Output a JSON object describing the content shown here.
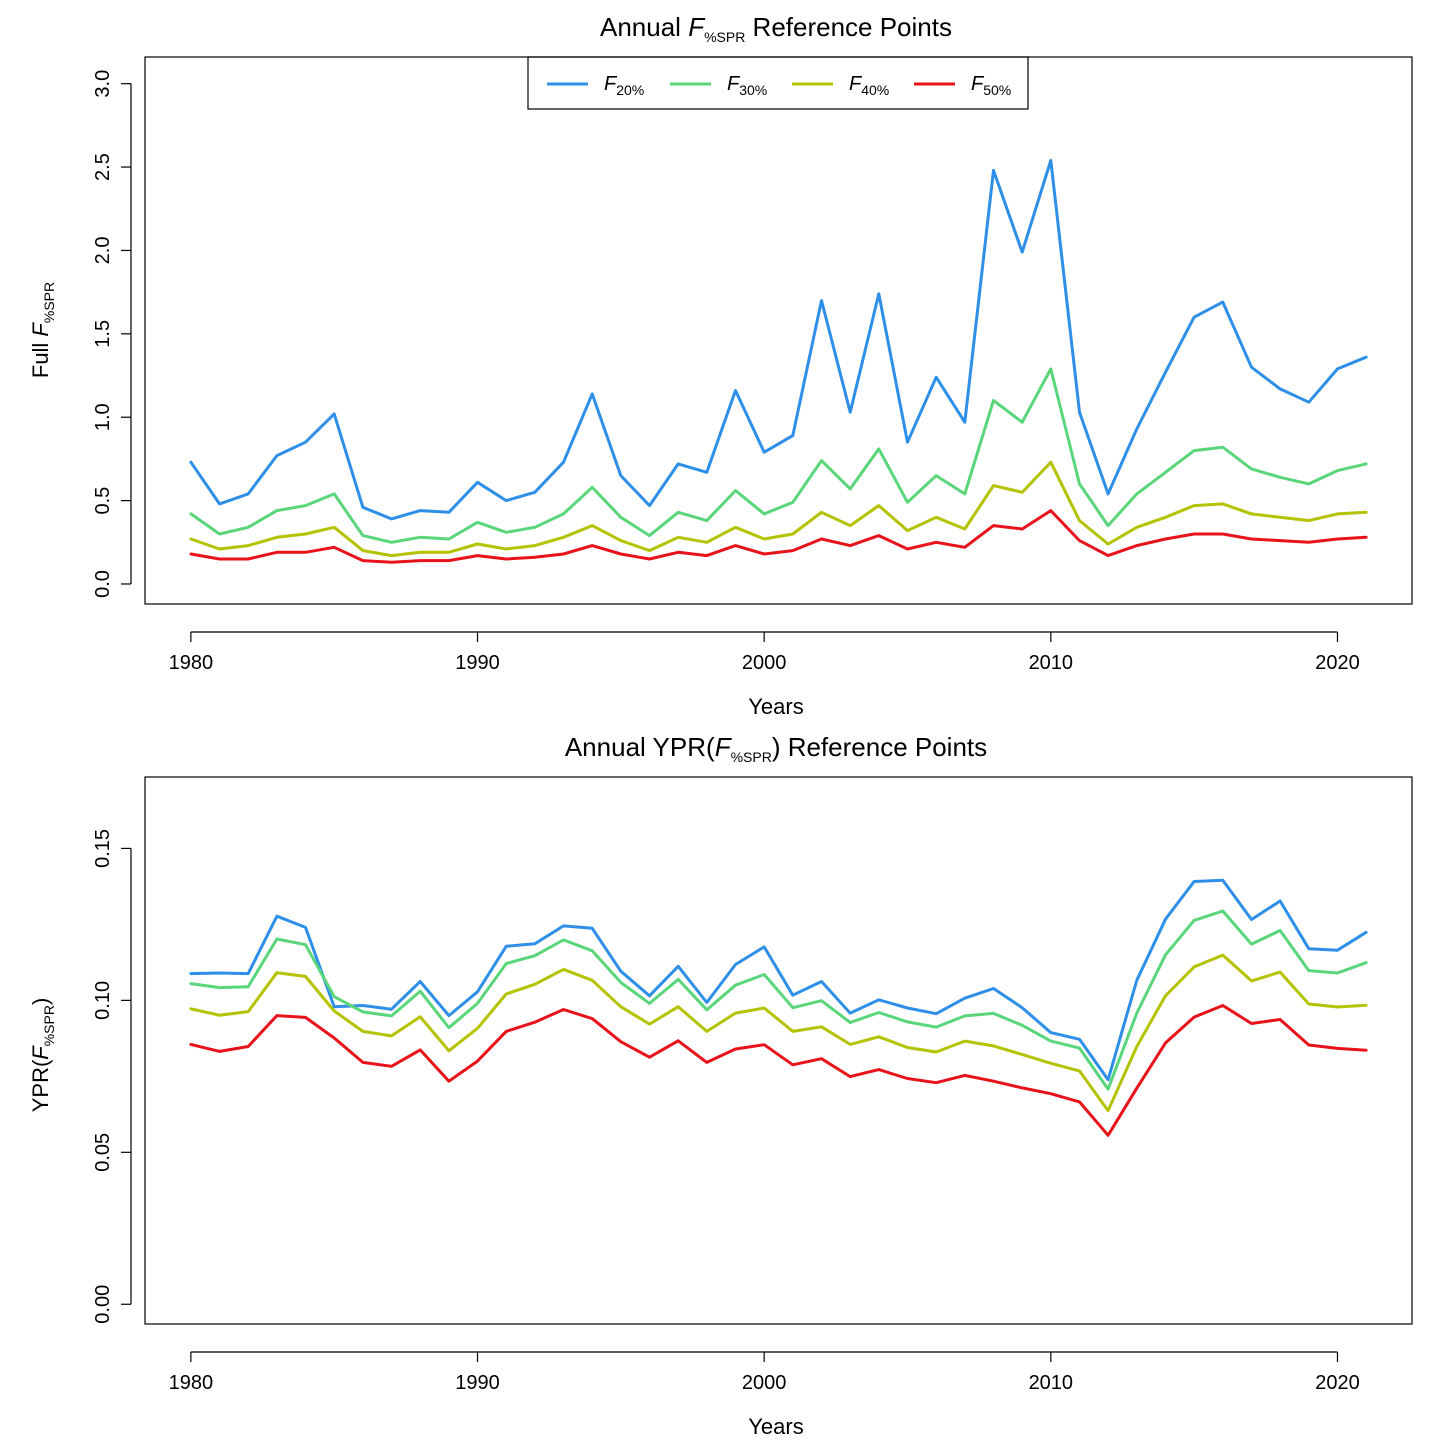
{
  "colors": {
    "F20": "#2E8FE8",
    "F30": "#5AD67A",
    "F40": "#B5C200",
    "F50": "#E8131A"
  },
  "chart_data": [
    {
      "type": "line",
      "title_pre": "Annual ",
      "title_sym": "F",
      "title_sub": "%SPR",
      "title_post": " Reference Points",
      "xlabel": "Years",
      "ylabel_pre": "Full ",
      "ylabel_sym": "F",
      "ylabel_sub": "%SPR",
      "ylabel_post": "",
      "xlim": [
        1978.4,
        2022.6
      ],
      "ylim": [
        -0.12,
        3.16
      ],
      "xticks": [
        1980,
        1990,
        2000,
        2010,
        2020
      ],
      "yticks": [
        "0.0",
        "0.5",
        "1.0",
        "1.5",
        "2.0",
        "2.5",
        "3.0"
      ],
      "legend_position": "top-center",
      "x": [
        1980,
        1981,
        1982,
        1983,
        1984,
        1985,
        1986,
        1987,
        1988,
        1989,
        1990,
        1991,
        1992,
        1993,
        1994,
        1995,
        1996,
        1997,
        1998,
        1999,
        2000,
        2001,
        2002,
        2003,
        2004,
        2005,
        2006,
        2007,
        2008,
        2009,
        2010,
        2011,
        2012,
        2013,
        2014,
        2015,
        2016,
        2017,
        2018,
        2019,
        2020,
        2021
      ],
      "series": [
        {
          "name": "F",
          "sub": "20%",
          "color_key": "F20",
          "values": [
            0.73,
            0.48,
            0.54,
            0.77,
            0.85,
            1.02,
            0.46,
            0.39,
            0.44,
            0.43,
            0.61,
            0.5,
            0.55,
            0.73,
            1.14,
            0.65,
            0.47,
            0.72,
            0.67,
            1.16,
            0.79,
            0.89,
            1.7,
            1.03,
            1.74,
            0.85,
            1.24,
            0.97,
            2.48,
            1.99,
            2.54,
            1.03,
            0.54,
            0.93,
            1.27,
            1.6,
            1.69,
            1.3,
            1.17,
            1.09,
            1.29,
            1.36
          ]
        },
        {
          "name": "F",
          "sub": "30%",
          "color_key": "F30",
          "values": [
            0.42,
            0.3,
            0.34,
            0.44,
            0.47,
            0.54,
            0.29,
            0.25,
            0.28,
            0.27,
            0.37,
            0.31,
            0.34,
            0.42,
            0.58,
            0.4,
            0.29,
            0.43,
            0.38,
            0.56,
            0.42,
            0.49,
            0.74,
            0.57,
            0.81,
            0.49,
            0.65,
            0.54,
            1.1,
            0.97,
            1.29,
            0.6,
            0.35,
            0.54,
            0.67,
            0.8,
            0.82,
            0.69,
            0.64,
            0.6,
            0.68,
            0.72
          ]
        },
        {
          "name": "F",
          "sub": "40%",
          "color_key": "F40",
          "values": [
            0.27,
            0.21,
            0.23,
            0.28,
            0.3,
            0.34,
            0.2,
            0.17,
            0.19,
            0.19,
            0.24,
            0.21,
            0.23,
            0.28,
            0.35,
            0.26,
            0.2,
            0.28,
            0.25,
            0.34,
            0.27,
            0.3,
            0.43,
            0.35,
            0.47,
            0.32,
            0.4,
            0.33,
            0.59,
            0.55,
            0.73,
            0.38,
            0.24,
            0.34,
            0.4,
            0.47,
            0.48,
            0.42,
            0.4,
            0.38,
            0.42,
            0.43
          ]
        },
        {
          "name": "F",
          "sub": "50%",
          "color_key": "F50",
          "values": [
            0.18,
            0.15,
            0.15,
            0.19,
            0.19,
            0.22,
            0.14,
            0.13,
            0.14,
            0.14,
            0.17,
            0.15,
            0.16,
            0.18,
            0.23,
            0.18,
            0.15,
            0.19,
            0.17,
            0.23,
            0.18,
            0.2,
            0.27,
            0.23,
            0.29,
            0.21,
            0.25,
            0.22,
            0.35,
            0.33,
            0.44,
            0.26,
            0.17,
            0.23,
            0.27,
            0.3,
            0.3,
            0.27,
            0.26,
            0.25,
            0.27,
            0.28
          ]
        }
      ]
    },
    {
      "type": "line",
      "title_pre": "Annual YPR(",
      "title_sym": "F",
      "title_sub": "%SPR",
      "title_post": ") Reference Points",
      "xlabel": "Years",
      "ylabel_pre": "YPR(",
      "ylabel_sym": "F",
      "ylabel_sub": "%SPR",
      "ylabel_post": ")",
      "xlim": [
        1978.4,
        2022.6
      ],
      "ylim": [
        -0.0065,
        0.1735
      ],
      "xticks": [
        1980,
        1990,
        2000,
        2010,
        2020
      ],
      "yticks": [
        "0.00",
        "0.05",
        "0.10",
        "0.15"
      ],
      "x": [
        1980,
        1981,
        1982,
        1983,
        1984,
        1985,
        1986,
        1987,
        1988,
        1989,
        1990,
        1991,
        1992,
        1993,
        1994,
        1995,
        1996,
        1997,
        1998,
        1999,
        2000,
        2001,
        2002,
        2003,
        2004,
        2005,
        2006,
        2007,
        2008,
        2009,
        2010,
        2011,
        2012,
        2013,
        2014,
        2015,
        2016,
        2017,
        2018,
        2019,
        2020,
        2021
      ],
      "series": [
        {
          "color_key": "F20",
          "values": [
            0.1088,
            0.109,
            0.1088,
            0.1277,
            0.124,
            0.0979,
            0.0983,
            0.0971,
            0.1062,
            0.095,
            0.1028,
            0.1178,
            0.1186,
            0.1245,
            0.1237,
            0.1096,
            0.1015,
            0.1112,
            0.0993,
            0.1118,
            0.1176,
            0.1017,
            0.1062,
            0.0958,
            0.1002,
            0.0975,
            0.0956,
            0.1007,
            0.1039,
            0.0976,
            0.0894,
            0.0872,
            0.0739,
            0.1066,
            0.1267,
            0.1391,
            0.1395,
            0.1266,
            0.1327,
            0.117,
            0.1165,
            0.1224
          ]
        },
        {
          "color_key": "F30",
          "values": [
            0.1055,
            0.1042,
            0.1045,
            0.1202,
            0.1183,
            0.1012,
            0.0962,
            0.0949,
            0.103,
            0.091,
            0.099,
            0.1121,
            0.1147,
            0.1199,
            0.1163,
            0.1059,
            0.099,
            0.1069,
            0.0969,
            0.105,
            0.1085,
            0.0976,
            0.0999,
            0.0927,
            0.096,
            0.0929,
            0.0912,
            0.0949,
            0.0957,
            0.0918,
            0.0866,
            0.0843,
            0.0708,
            0.0958,
            0.115,
            0.1263,
            0.1294,
            0.1185,
            0.123,
            0.1098,
            0.109,
            0.1124
          ]
        },
        {
          "color_key": "F40",
          "values": [
            0.0972,
            0.0951,
            0.0963,
            0.1091,
            0.1079,
            0.0965,
            0.0898,
            0.0883,
            0.0946,
            0.0834,
            0.0908,
            0.1021,
            0.1053,
            0.1102,
            0.1066,
            0.0979,
            0.0922,
            0.0979,
            0.0898,
            0.0958,
            0.0975,
            0.0898,
            0.0913,
            0.0855,
            0.088,
            0.0845,
            0.083,
            0.0866,
            0.085,
            0.0822,
            0.0793,
            0.0768,
            0.0637,
            0.0848,
            0.1015,
            0.111,
            0.1149,
            0.1064,
            0.1093,
            0.0988,
            0.0978,
            0.0984
          ]
        },
        {
          "color_key": "F50",
          "values": [
            0.0855,
            0.0832,
            0.0848,
            0.095,
            0.0944,
            0.0876,
            0.0796,
            0.0783,
            0.0837,
            0.0734,
            0.08,
            0.0898,
            0.0928,
            0.097,
            0.094,
            0.0864,
            0.0813,
            0.0867,
            0.0796,
            0.084,
            0.0854,
            0.0788,
            0.0808,
            0.0749,
            0.0772,
            0.0743,
            0.0729,
            0.0753,
            0.0734,
            0.0712,
            0.0693,
            0.0666,
            0.0556,
            0.0711,
            0.086,
            0.0945,
            0.0983,
            0.0924,
            0.0937,
            0.0853,
            0.0842,
            0.0836
          ]
        }
      ]
    }
  ]
}
